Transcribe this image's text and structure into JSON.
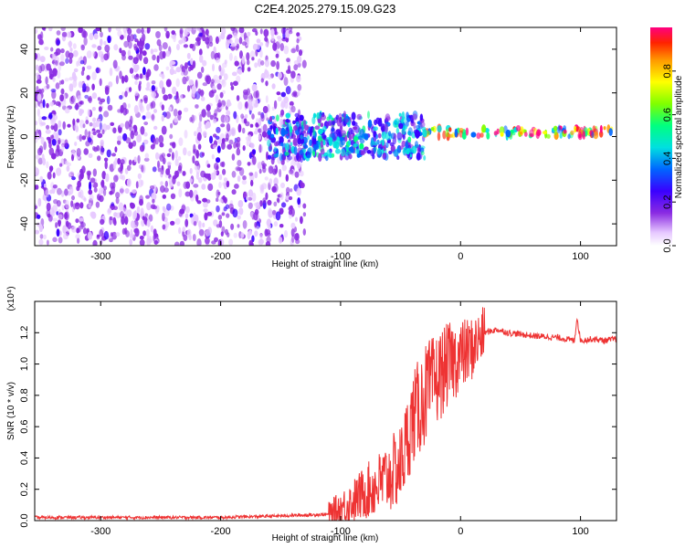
{
  "title": "C2E4.2025.279.15.09.G23",
  "chart_data": [
    {
      "type": "heatmap",
      "name": "spectrogram",
      "xlabel": "Height of straight line (km)",
      "ylabel": "Frequency (Hz)",
      "xlim": [
        -355,
        130
      ],
      "ylim": [
        -50,
        50
      ],
      "xticks": [
        -300,
        -200,
        -100,
        0,
        100
      ],
      "yticks": [
        -40,
        -20,
        0,
        20,
        40
      ],
      "colorbar": {
        "label": "Normalized spectral amplitude",
        "range": [
          0.0,
          1.0
        ],
        "ticks": [
          0.0,
          0.2,
          0.4,
          0.6,
          0.8
        ],
        "tick_labels": [
          "0.0",
          "0.2",
          "0.4",
          "0.6",
          "0.8"
        ]
      },
      "description_regions": [
        {
          "x_from": -355,
          "x_to": -130,
          "freq_from": -50,
          "freq_to": 50,
          "amplitude": 0.2
        },
        {
          "x_from": -160,
          "x_to": -30,
          "freq_from": -10,
          "freq_to": 10,
          "amplitude": 0.45
        },
        {
          "x_from": -30,
          "x_to": 130,
          "freq_from": 0,
          "freq_to": 4,
          "amplitude": 0.9
        }
      ]
    },
    {
      "type": "line",
      "name": "snr",
      "xlabel": "Height of straight line (km)",
      "ylabel": "SNR (10 * v/v)",
      "y_multiplier": "(x10⁴)",
      "xlim": [
        -355,
        130
      ],
      "ylim": [
        0.0,
        1.4
      ],
      "xticks": [
        -300,
        -200,
        -100,
        0,
        100
      ],
      "yticks": [
        0.0,
        0.2,
        0.4,
        0.6,
        0.8,
        1.0,
        1.2
      ],
      "ytick_labels": [
        "0.0",
        "0.2",
        "0.4",
        "0.6",
        "0.8",
        "1.0",
        "1.2"
      ],
      "color": "#ee3333",
      "series": [
        {
          "name": "SNR",
          "x": [
            -355,
            -300,
            -250,
            -200,
            -150,
            -110,
            -100,
            -90,
            -80,
            -70,
            -60,
            -50,
            -45,
            -40,
            -35,
            -30,
            -25,
            -20,
            -15,
            -10,
            0,
            10,
            20,
            30,
            40,
            60,
            80,
            95,
            97,
            100,
            110,
            120,
            130
          ],
          "y": [
            0.02,
            0.02,
            0.02,
            0.02,
            0.03,
            0.04,
            0.08,
            0.12,
            0.18,
            0.22,
            0.28,
            0.35,
            0.5,
            0.65,
            0.72,
            0.8,
            0.85,
            0.9,
            0.95,
            1.0,
            1.05,
            1.1,
            1.2,
            1.22,
            1.2,
            1.18,
            1.17,
            1.15,
            1.3,
            1.15,
            1.16,
            1.15,
            1.16
          ]
        }
      ]
    }
  ]
}
